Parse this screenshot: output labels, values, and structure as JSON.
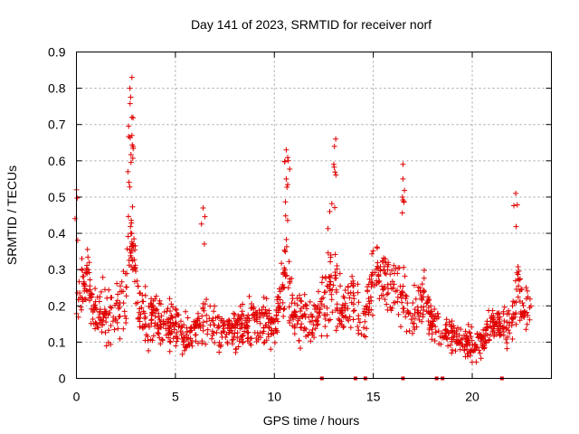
{
  "chart_data": {
    "type": "scatter",
    "title": "Day 141 of 2023, SRMTID for receiver norf",
    "xlabel": "GPS time / hours",
    "ylabel": "SRMTID / TECUs",
    "xlim": [
      0,
      24
    ],
    "ylim": [
      0,
      0.9
    ],
    "xticks": [
      0,
      5,
      10,
      15,
      20
    ],
    "xtick_labels": [
      "0",
      "5",
      "10",
      "15",
      "20"
    ],
    "yticks": [
      0,
      0.1,
      0.2,
      0.3,
      0.4,
      0.5,
      0.6,
      0.7,
      0.8,
      0.9
    ],
    "ytick_labels": [
      "0",
      "0.1",
      "0.2",
      "0.3",
      "0.4",
      "0.5",
      "0.6",
      "0.7",
      "0.8",
      "0.9"
    ],
    "grid": true,
    "marker": "+",
    "color": "#e00000",
    "zero_flags_x": [
      12.4,
      14.1,
      14.6,
      16.5,
      18.2,
      18.5,
      21.5
    ],
    "peaks": [
      {
        "x": 2.8,
        "y": 0.83
      },
      {
        "x": 2.7,
        "y": 0.8
      },
      {
        "x": 2.8,
        "y": 0.72
      },
      {
        "x": 2.8,
        "y": 0.67
      },
      {
        "x": 2.6,
        "y": 0.57
      },
      {
        "x": 10.6,
        "y": 0.63
      },
      {
        "x": 10.7,
        "y": 0.6
      },
      {
        "x": 10.6,
        "y": 0.55
      },
      {
        "x": 13.1,
        "y": 0.66
      },
      {
        "x": 13.0,
        "y": 0.59
      },
      {
        "x": 16.5,
        "y": 0.59
      },
      {
        "x": 16.5,
        "y": 0.55
      },
      {
        "x": 22.2,
        "y": 0.51
      },
      {
        "x": 0.0,
        "y": 0.52
      },
      {
        "x": 6.4,
        "y": 0.47
      },
      {
        "x": 12.8,
        "y": 0.46
      }
    ],
    "envelope": {
      "x": [
        0,
        0.5,
        1,
        1.5,
        2,
        2.5,
        2.8,
        3.2,
        4,
        5,
        5.5,
        6,
        6.5,
        7,
        8,
        9,
        10,
        10.6,
        11,
        11.5,
        12,
        12.5,
        13,
        13.5,
        14,
        14.5,
        15,
        15.5,
        16,
        16.5,
        17,
        17.5,
        18,
        19,
        20,
        20.5,
        21,
        21.5,
        22,
        22.3,
        22.6,
        23
      ],
      "center": [
        0.22,
        0.28,
        0.17,
        0.18,
        0.19,
        0.22,
        0.38,
        0.18,
        0.16,
        0.15,
        0.12,
        0.14,
        0.17,
        0.13,
        0.13,
        0.16,
        0.14,
        0.3,
        0.16,
        0.18,
        0.16,
        0.21,
        0.26,
        0.19,
        0.2,
        0.15,
        0.27,
        0.28,
        0.25,
        0.22,
        0.16,
        0.23,
        0.14,
        0.12,
        0.09,
        0.1,
        0.15,
        0.15,
        0.15,
        0.25,
        0.18,
        0.18
      ],
      "spread": [
        0.08,
        0.07,
        0.06,
        0.07,
        0.08,
        0.1,
        0.12,
        0.07,
        0.06,
        0.06,
        0.05,
        0.05,
        0.07,
        0.05,
        0.05,
        0.07,
        0.06,
        0.1,
        0.06,
        0.08,
        0.07,
        0.08,
        0.09,
        0.08,
        0.08,
        0.06,
        0.08,
        0.08,
        0.08,
        0.08,
        0.05,
        0.08,
        0.05,
        0.04,
        0.04,
        0.04,
        0.05,
        0.05,
        0.06,
        0.08,
        0.06,
        0.06
      ]
    },
    "samples": 1400,
    "seed": 141
  }
}
